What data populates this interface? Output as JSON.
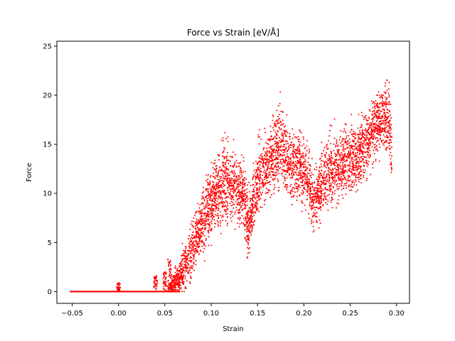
{
  "chart_data": {
    "type": "scatter",
    "title": "Force vs Strain [eV/Å]",
    "xlabel": "Strain",
    "ylabel": "Force",
    "xlim": [
      -0.0665,
      0.314
    ],
    "ylim": [
      -1.2,
      25.5
    ],
    "xticks": [
      -0.05,
      0.0,
      0.05,
      0.1,
      0.15,
      0.2,
      0.25,
      0.3
    ],
    "xtick_labels": [
      "−0.05",
      "0.00",
      "0.05",
      "0.10",
      "0.15",
      "0.20",
      "0.25",
      "0.30"
    ],
    "yticks": [
      0,
      5,
      10,
      15,
      20,
      25
    ],
    "ytick_labels": [
      "0",
      "5",
      "10",
      "15",
      "20",
      "25"
    ],
    "grid": false,
    "marker_color": "#ff0000",
    "marker_size": 1,
    "series": [
      {
        "name": "",
        "points_description": "dense scatter; zero baseline then rising noisy band",
        "envelope": {
          "x": [
            -0.052,
            0.0,
            0.04,
            0.055,
            0.065,
            0.08,
            0.1,
            0.115,
            0.125,
            0.135,
            0.14,
            0.15,
            0.165,
            0.175,
            0.185,
            0.195,
            0.205,
            0.21,
            0.225,
            0.24,
            0.26,
            0.275,
            0.285,
            0.292,
            0.295
          ],
          "mean": [
            0.0,
            0.0,
            0.0,
            0.3,
            1.2,
            4.5,
            9.0,
            11.5,
            10.5,
            10.0,
            6.5,
            11.5,
            13.5,
            15.0,
            13.0,
            13.0,
            11.5,
            9.0,
            12.0,
            13.0,
            14.0,
            16.5,
            18.0,
            17.0,
            14.5
          ],
          "spread": [
            0.0,
            0.0,
            0.0,
            0.8,
            1.5,
            2.5,
            3.0,
            3.5,
            3.0,
            3.0,
            2.5,
            3.0,
            3.0,
            3.5,
            3.0,
            3.0,
            3.0,
            2.5,
            3.0,
            3.0,
            3.0,
            3.0,
            3.0,
            3.5,
            4.0
          ]
        },
        "spikes": [
          {
            "x": 0.0,
            "max": 0.9
          },
          {
            "x": 0.04,
            "max": 1.6
          },
          {
            "x": 0.05,
            "max": 2.0
          },
          {
            "x": 0.055,
            "max": 3.3
          }
        ]
      }
    ]
  }
}
